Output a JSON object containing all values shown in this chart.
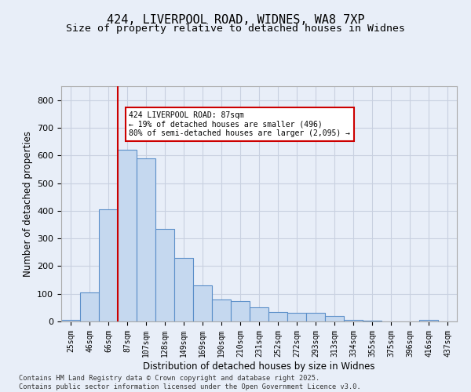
{
  "title1": "424, LIVERPOOL ROAD, WIDNES, WA8 7XP",
  "title2": "Size of property relative to detached houses in Widnes",
  "xlabel": "Distribution of detached houses by size in Widnes",
  "ylabel": "Number of detached properties",
  "categories": [
    "25sqm",
    "46sqm",
    "66sqm",
    "87sqm",
    "107sqm",
    "128sqm",
    "149sqm",
    "169sqm",
    "190sqm",
    "210sqm",
    "231sqm",
    "252sqm",
    "272sqm",
    "293sqm",
    "313sqm",
    "334sqm",
    "355sqm",
    "375sqm",
    "396sqm",
    "416sqm",
    "437sqm"
  ],
  "values": [
    5,
    105,
    405,
    620,
    590,
    335,
    230,
    130,
    80,
    75,
    50,
    35,
    30,
    30,
    20,
    5,
    2,
    0,
    0,
    5,
    0
  ],
  "bar_color": "#c5d8ef",
  "bar_edge_color": "#5b8fc9",
  "vline_color": "#cc0000",
  "annotation_text": "424 LIVERPOOL ROAD: 87sqm\n← 19% of detached houses are smaller (496)\n80% of semi-detached houses are larger (2,095) →",
  "annotation_box_color": "white",
  "annotation_box_edge": "#cc0000",
  "bg_color": "#e8eef8",
  "grid_color": "#c8d0e0",
  "footer": "Contains HM Land Registry data © Crown copyright and database right 2025.\nContains public sector information licensed under the Open Government Licence v3.0.",
  "ylim": [
    0,
    850
  ],
  "yticks": [
    0,
    100,
    200,
    300,
    400,
    500,
    600,
    700,
    800
  ],
  "title1_fontsize": 11,
  "title2_fontsize": 9.5
}
